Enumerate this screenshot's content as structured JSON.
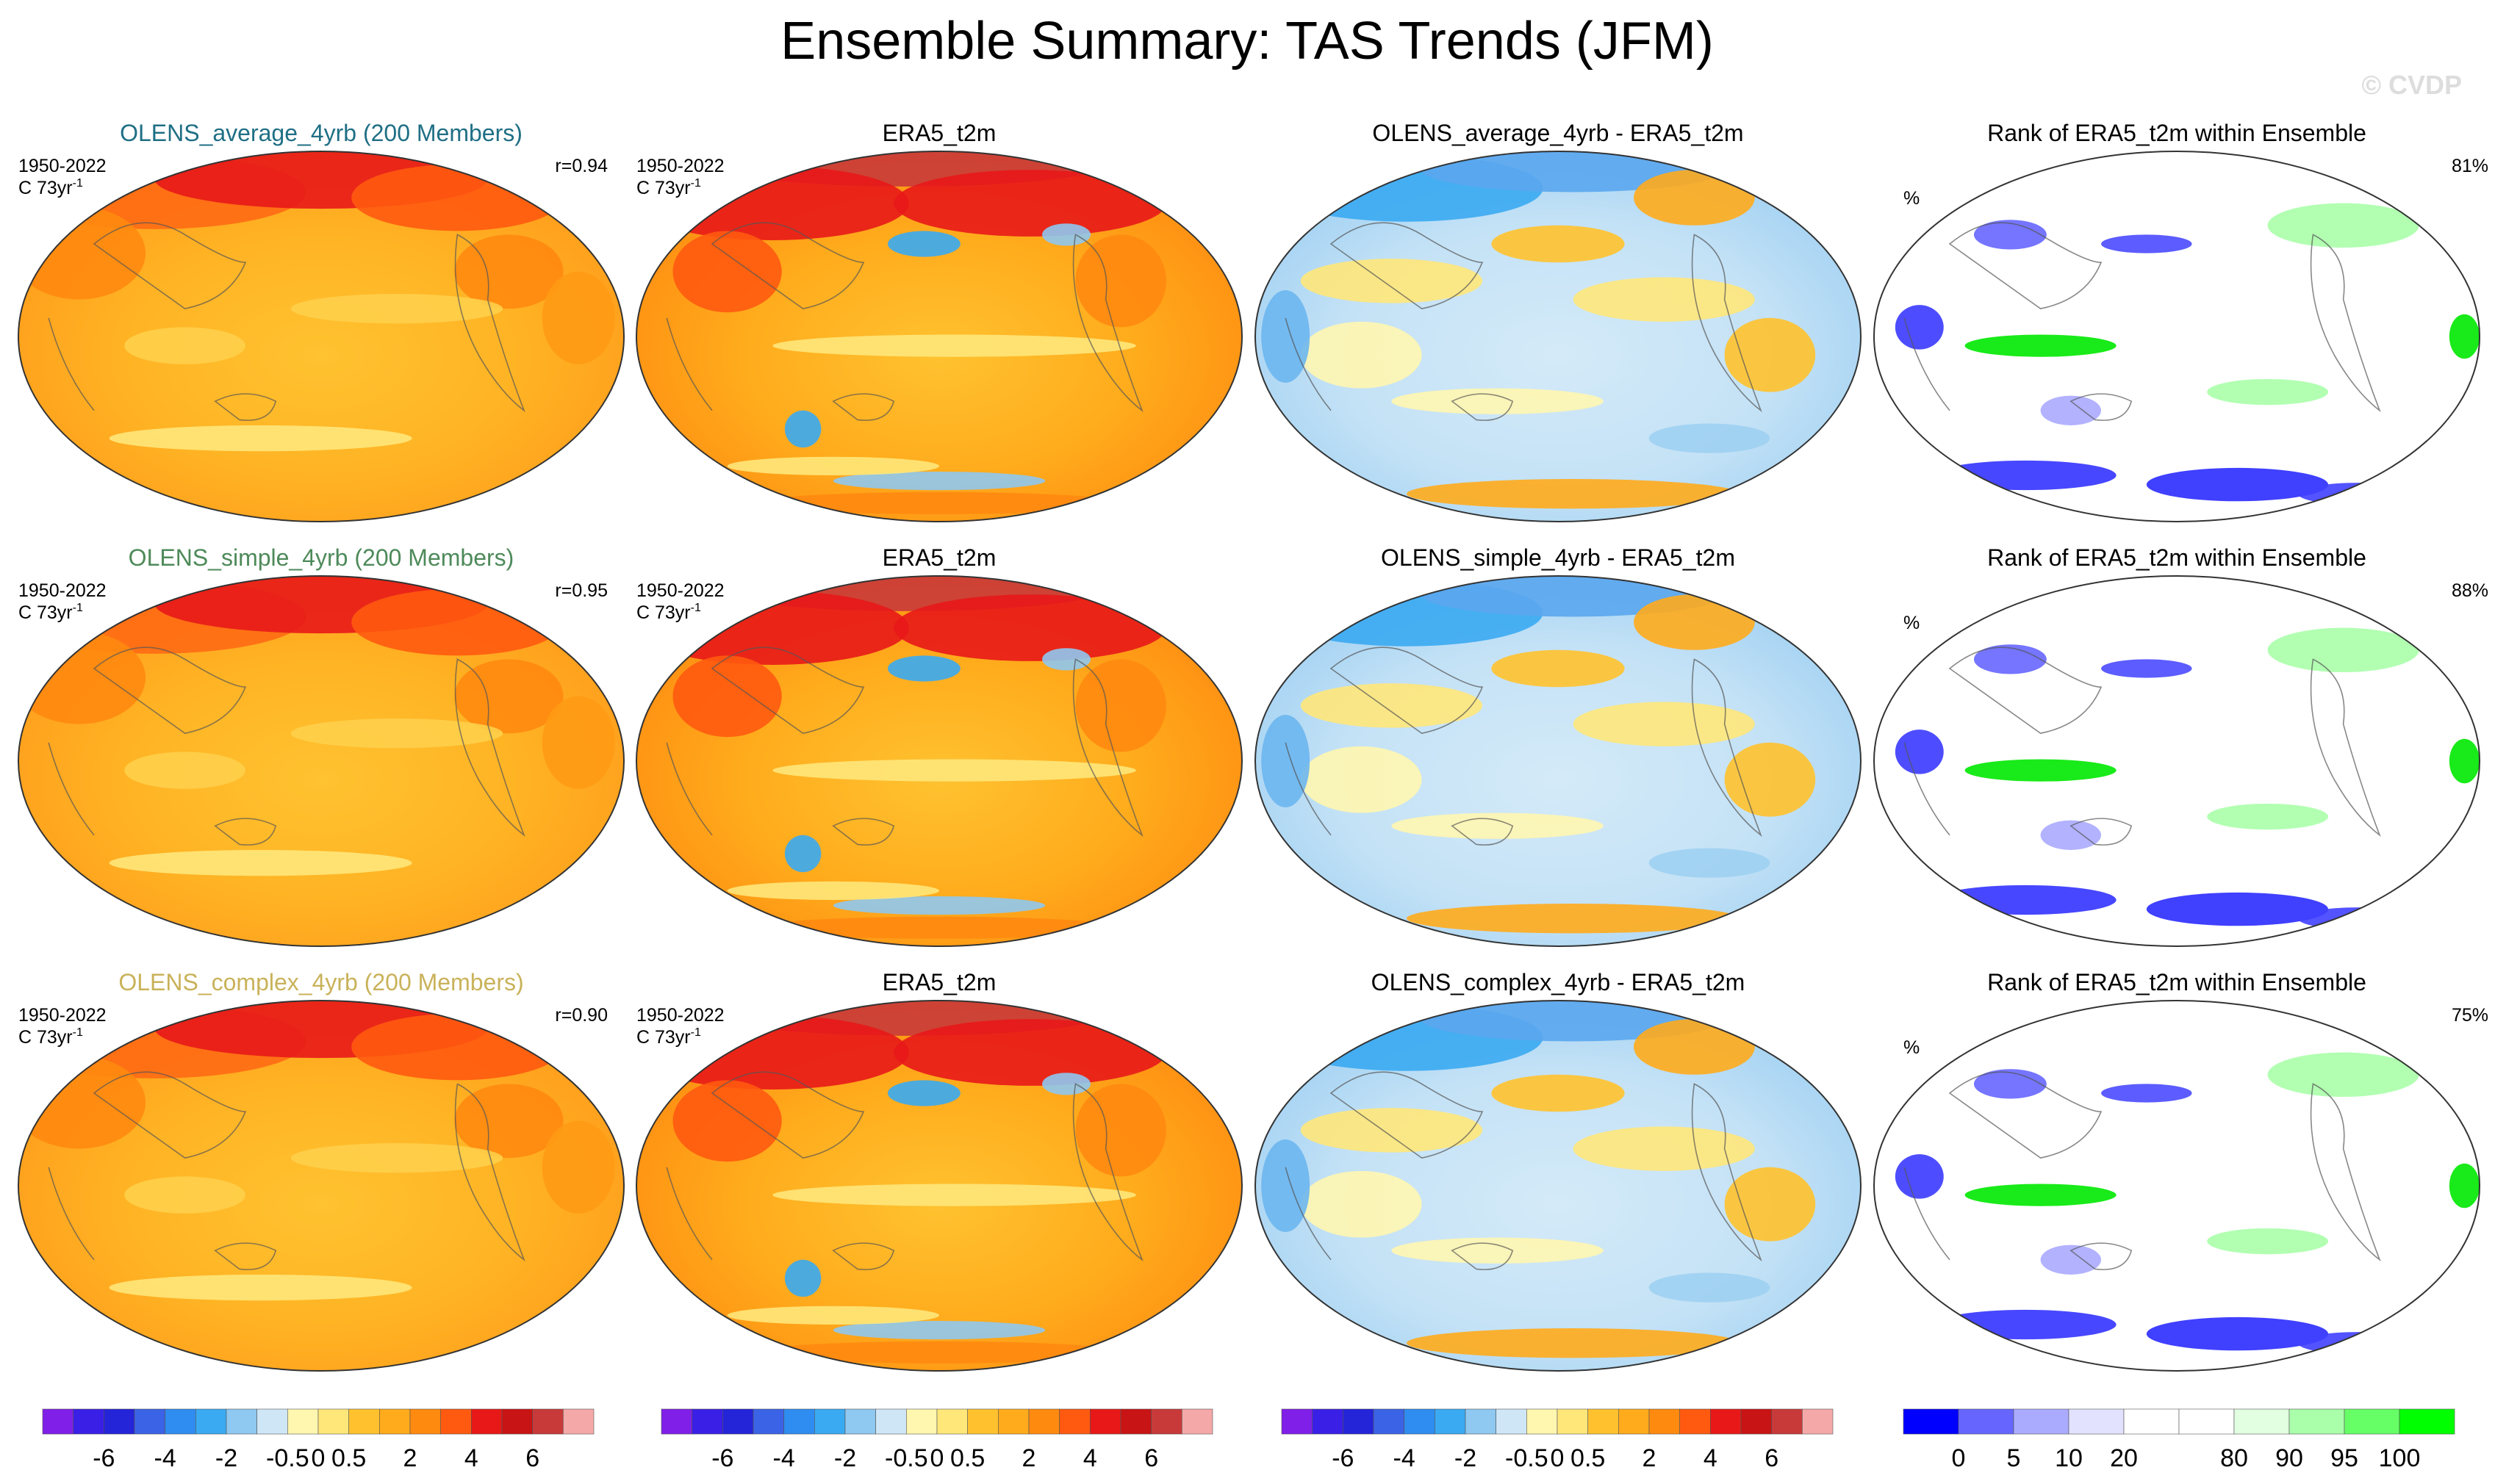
{
  "title": "Ensemble Summary: TAS Trends (JFM)",
  "watermark": "© CVDP",
  "chart_data": {
    "type": "heatmap",
    "projection": "Robinson",
    "season": "JFM",
    "variable": "TAS",
    "period": "1950-2022",
    "units_prefix": "C 73yr",
    "units_exponent": "-1",
    "rows": [
      {
        "model": "OLENS_average_4yrb",
        "model_color": "#1f6f85",
        "panels": [
          {
            "kind": "model",
            "title": "OLENS_average_4yrb (200 Members)",
            "period": "1950-2022",
            "units": "C 73yr",
            "units_exp": "-1",
            "corr": "r=0.94"
          },
          {
            "kind": "obs",
            "title": "ERA5_t2m",
            "period": "1950-2022",
            "units": "C 73yr",
            "units_exp": "-1"
          },
          {
            "kind": "diff",
            "title": "OLENS_average_4yrb - ERA5_t2m"
          },
          {
            "kind": "rank",
            "title": "Rank of ERA5_t2m within Ensemble",
            "units": "%",
            "pct": "81%"
          }
        ]
      },
      {
        "model": "OLENS_simple_4yrb",
        "model_color": "#4e8a5a",
        "panels": [
          {
            "kind": "model",
            "title": "OLENS_simple_4yrb (200 Members)",
            "period": "1950-2022",
            "units": "C 73yr",
            "units_exp": "-1",
            "corr": "r=0.95"
          },
          {
            "kind": "obs",
            "title": "ERA5_t2m",
            "period": "1950-2022",
            "units": "C 73yr",
            "units_exp": "-1"
          },
          {
            "kind": "diff",
            "title": "OLENS_simple_4yrb - ERA5_t2m"
          },
          {
            "kind": "rank",
            "title": "Rank of ERA5_t2m within Ensemble",
            "units": "%",
            "pct": "88%"
          }
        ]
      },
      {
        "model": "OLENS_complex_4yrb",
        "model_color": "#c9b25a",
        "panels": [
          {
            "kind": "model",
            "title": "OLENS_complex_4yrb (200 Members)",
            "period": "1950-2022",
            "units": "C 73yr",
            "units_exp": "-1",
            "corr": "r=0.90"
          },
          {
            "kind": "obs",
            "title": "ERA5_t2m",
            "period": "1950-2022",
            "units": "C 73yr",
            "units_exp": "-1"
          },
          {
            "kind": "diff",
            "title": "OLENS_complex_4yrb - ERA5_t2m"
          },
          {
            "kind": "rank",
            "title": "Rank of ERA5_t2m within Ensemble",
            "units": "%",
            "pct": "75%"
          }
        ]
      }
    ],
    "colorbars": [
      {
        "name": "trend",
        "colors": [
          "#7f1fe8",
          "#3a1fe6",
          "#2424d8",
          "#3b63e6",
          "#2f8cf0",
          "#3aaaf2",
          "#8fc8f0",
          "#cfe6f7",
          "#fff6b0",
          "#ffe77a",
          "#ffc22e",
          "#ffab1c",
          "#ff8a10",
          "#ff5a10",
          "#e81818",
          "#c81414",
          "#c83a3a",
          "#f5a8a8"
        ],
        "labels": [
          "-6",
          "-4",
          "-2",
          "-0.5",
          "0",
          "0.5",
          "2",
          "4",
          "6"
        ]
      },
      {
        "name": "trend",
        "colors": [
          "#7f1fe8",
          "#3a1fe6",
          "#2424d8",
          "#3b63e6",
          "#2f8cf0",
          "#3aaaf2",
          "#8fc8f0",
          "#cfe6f7",
          "#fff6b0",
          "#ffe77a",
          "#ffc22e",
          "#ffab1c",
          "#ff8a10",
          "#ff5a10",
          "#e81818",
          "#c81414",
          "#c83a3a",
          "#f5a8a8"
        ],
        "labels": [
          "-6",
          "-4",
          "-2",
          "-0.5",
          "0",
          "0.5",
          "2",
          "4",
          "6"
        ]
      },
      {
        "name": "difference",
        "colors": [
          "#7f1fe8",
          "#3a1fe6",
          "#2424d8",
          "#3b63e6",
          "#2f8cf0",
          "#3aaaf2",
          "#8fc8f0",
          "#cfe6f7",
          "#fff6b0",
          "#ffe77a",
          "#ffc22e",
          "#ffab1c",
          "#ff8a10",
          "#ff5a10",
          "#e81818",
          "#c81414",
          "#c83a3a",
          "#f5a8a8"
        ],
        "labels": [
          "-6",
          "-4",
          "-2",
          "-0.5",
          "0",
          "0.5",
          "2",
          "4",
          "6"
        ]
      },
      {
        "name": "rank",
        "colors": [
          "#0000ff",
          "#6666ff",
          "#aaaaff",
          "#e2e2ff",
          "#ffffff",
          "#ffffff",
          "#e2ffe2",
          "#aaffaa",
          "#66ff66",
          "#00ff00"
        ],
        "labels": [
          "0",
          "5",
          "10",
          "20",
          "80",
          "90",
          "95",
          "100"
        ]
      }
    ]
  }
}
